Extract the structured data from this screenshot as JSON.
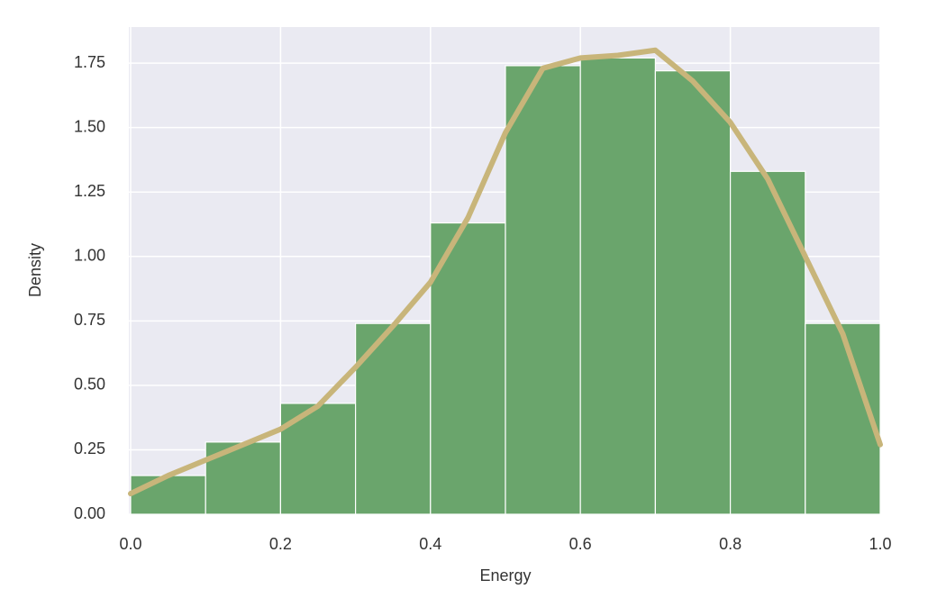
{
  "chart_data": {
    "type": "histogram",
    "xlabel": "Energy",
    "ylabel": "Density",
    "bins": [
      0,
      0.1,
      0.2,
      0.3,
      0.4,
      0.5,
      0.6,
      0.7,
      0.8,
      0.9,
      1.0
    ],
    "values": [
      0.15,
      0.28,
      0.43,
      0.74,
      1.13,
      1.74,
      1.77,
      1.72,
      1.33,
      0.74
    ],
    "color": "#6aa56c",
    "kde": {
      "color": "#c8b57a",
      "x": [
        0,
        0.05,
        0.1,
        0.15,
        0.2,
        0.25,
        0.3,
        0.35,
        0.4,
        0.45,
        0.5,
        0.55,
        0.6,
        0.65,
        0.7,
        0.75,
        0.8,
        0.85,
        0.9,
        0.95,
        1.0
      ],
      "values": [
        0.08,
        0.15,
        0.21,
        0.27,
        0.33,
        0.42,
        0.57,
        0.73,
        0.9,
        1.15,
        1.48,
        1.73,
        1.77,
        1.78,
        1.8,
        1.68,
        1.52,
        1.3,
        1.0,
        0.7,
        0.27
      ]
    },
    "xlim": [
      0,
      1
    ],
    "ylim": [
      0,
      1.89
    ],
    "xticks": [
      {
        "value": 0,
        "label": "0.0"
      },
      0.2,
      0.4,
      0.6,
      0.8,
      {
        "value": 1,
        "label": "1.0"
      }
    ],
    "yticks": [
      {
        "value": 0,
        "label": "0.00"
      },
      {
        "value": 0.25,
        "label": "0.25"
      },
      {
        "value": 0.5,
        "label": "0.50"
      },
      {
        "value": 0.75,
        "label": "0.75"
      },
      {
        "value": 1,
        "label": "1.00"
      },
      {
        "value": 1.25,
        "label": "1.25"
      },
      {
        "value": 1.5,
        "label": "1.50"
      },
      {
        "value": 1.75,
        "label": "1.75"
      }
    ],
    "grid": true,
    "background": "#eaeaf2"
  }
}
